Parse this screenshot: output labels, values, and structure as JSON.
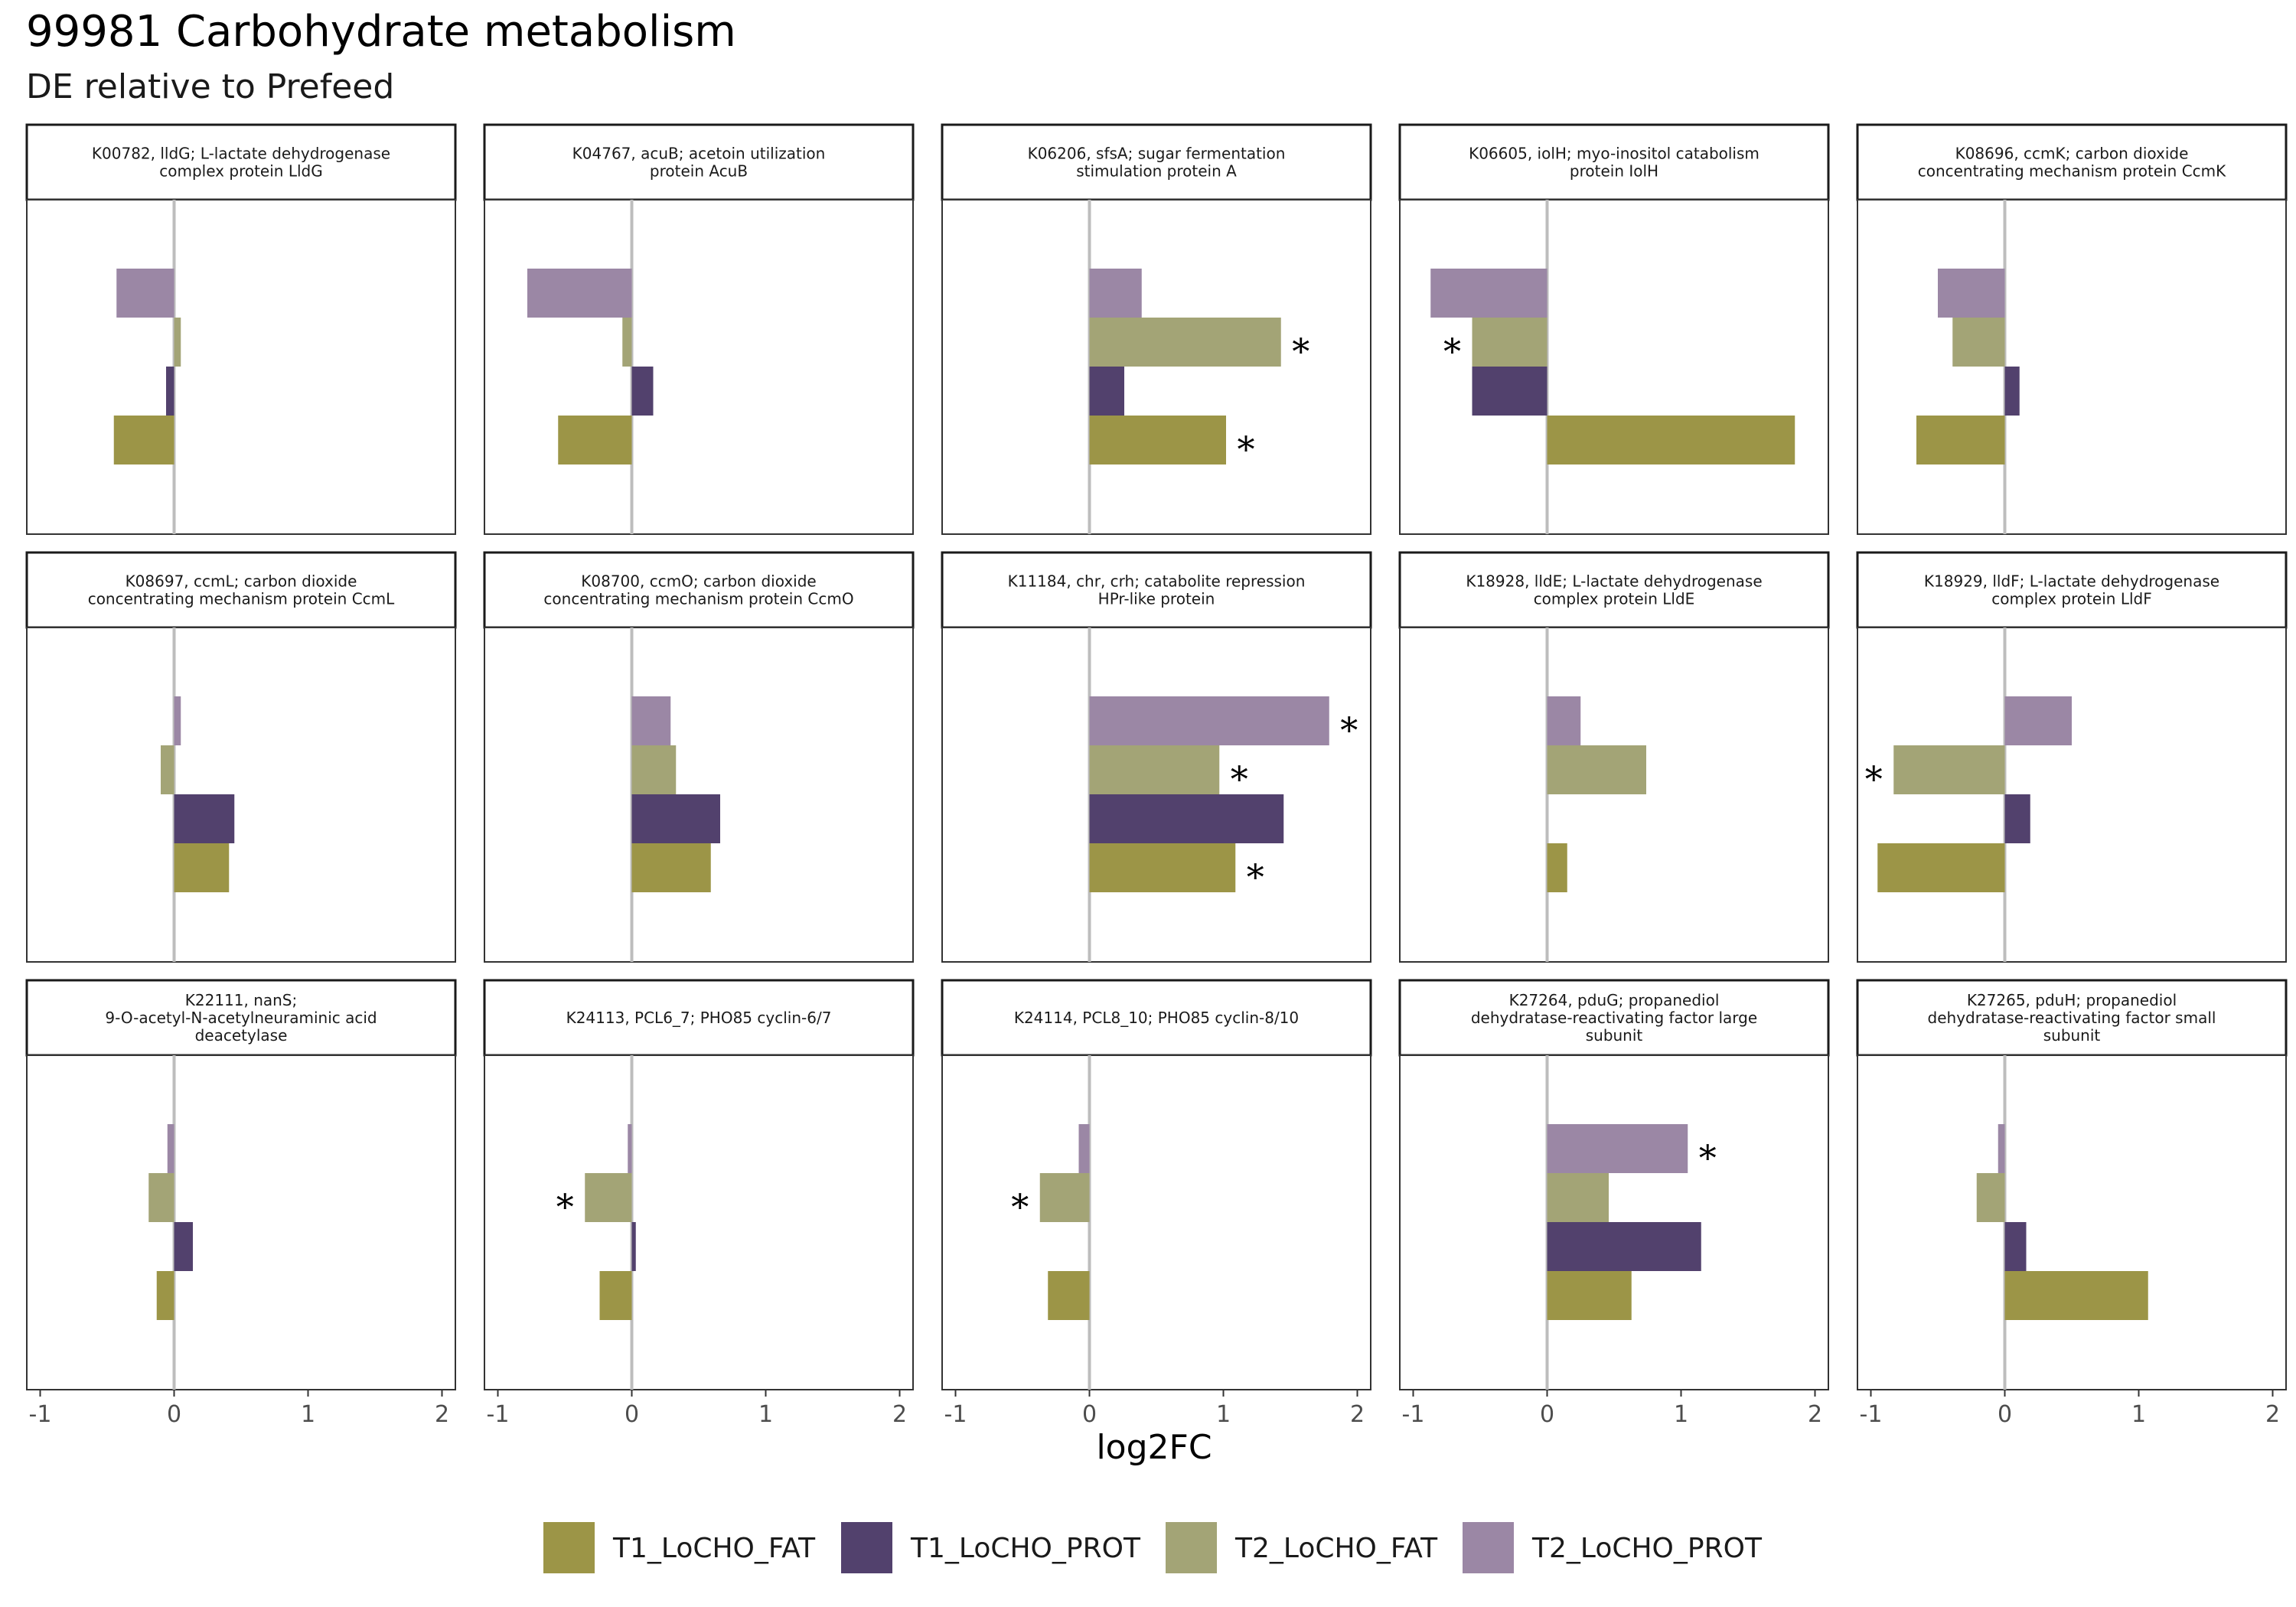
{
  "title": "99981 Carbohydrate metabolism",
  "subtitle": "DE relative to Prefeed",
  "chart_data": {
    "type": "bar",
    "orientation": "horizontal",
    "facet_layout": "3 rows x 5 columns",
    "xlabel": "log2FC",
    "xlim": [
      -1.1,
      2.1
    ],
    "xticks": [
      -1,
      0,
      1,
      2
    ],
    "xtick_labels": [
      "-1",
      "0",
      "1",
      "2"
    ],
    "zero_line": true,
    "grid": false,
    "legend_position": "bottom",
    "series": [
      {
        "name": "T1_LoCHO_FAT",
        "color": "#9c9547"
      },
      {
        "name": "T1_LoCHO_PROT",
        "color": "#52416d"
      },
      {
        "name": "T2_LoCHO_FAT",
        "color": "#a3a476"
      },
      {
        "name": "T2_LoCHO_PROT",
        "color": "#9b87a5"
      }
    ],
    "panels": [
      {
        "title_lines": [
          "K00782, lldG; L-lactate dehydrogenase",
          "complex protein LldG"
        ],
        "values": {
          "T1_LoCHO_FAT": -0.45,
          "T1_LoCHO_PROT": -0.06,
          "T2_LoCHO_FAT": 0.05,
          "T2_LoCHO_PROT": -0.43
        },
        "significant": []
      },
      {
        "title_lines": [
          "K04767, acuB; acetoin utilization",
          "protein AcuB"
        ],
        "values": {
          "T1_LoCHO_FAT": -0.55,
          "T1_LoCHO_PROT": 0.16,
          "T2_LoCHO_FAT": -0.07,
          "T2_LoCHO_PROT": -0.78
        },
        "significant": []
      },
      {
        "title_lines": [
          "K06206, sfsA; sugar fermentation",
          "stimulation protein A"
        ],
        "values": {
          "T1_LoCHO_FAT": 1.02,
          "T1_LoCHO_PROT": 0.26,
          "T2_LoCHO_FAT": 1.43,
          "T2_LoCHO_PROT": 0.39
        },
        "significant": [
          "T1_LoCHO_FAT",
          "T2_LoCHO_FAT"
        ]
      },
      {
        "title_lines": [
          "K06605, iolH; myo-inositol catabolism",
          "protein IolH"
        ],
        "values": {
          "T1_LoCHO_FAT": 1.85,
          "T1_LoCHO_PROT": -0.56,
          "T2_LoCHO_FAT": -0.56,
          "T2_LoCHO_PROT": -0.87
        },
        "significant": [
          "T2_LoCHO_FAT"
        ]
      },
      {
        "title_lines": [
          "K08696, ccmK; carbon dioxide",
          "concentrating mechanism protein CcmK"
        ],
        "values": {
          "T1_LoCHO_FAT": -0.66,
          "T1_LoCHO_PROT": 0.11,
          "T2_LoCHO_FAT": -0.39,
          "T2_LoCHO_PROT": -0.5
        },
        "significant": []
      },
      {
        "title_lines": [
          "K08697, ccmL; carbon dioxide",
          "concentrating mechanism protein CcmL"
        ],
        "values": {
          "T1_LoCHO_FAT": 0.41,
          "T1_LoCHO_PROT": 0.45,
          "T2_LoCHO_FAT": -0.1,
          "T2_LoCHO_PROT": 0.05
        },
        "significant": []
      },
      {
        "title_lines": [
          "K08700, ccmO; carbon dioxide",
          "concentrating mechanism protein CcmO"
        ],
        "values": {
          "T1_LoCHO_FAT": 0.59,
          "T1_LoCHO_PROT": 0.66,
          "T2_LoCHO_FAT": 0.33,
          "T2_LoCHO_PROT": 0.29
        },
        "significant": []
      },
      {
        "title_lines": [
          "K11184, chr, crh; catabolite repression",
          "HPr-like protein"
        ],
        "values": {
          "T1_LoCHO_FAT": 1.09,
          "T1_LoCHO_PROT": 1.45,
          "T2_LoCHO_FAT": 0.97,
          "T2_LoCHO_PROT": 1.79
        },
        "significant": [
          "T1_LoCHO_FAT",
          "T2_LoCHO_FAT",
          "T2_LoCHO_PROT"
        ]
      },
      {
        "title_lines": [
          "K18928, lldE; L-lactate dehydrogenase",
          "complex protein LldE"
        ],
        "values": {
          "T1_LoCHO_FAT": 0.15,
          "T1_LoCHO_PROT": 0.0,
          "T2_LoCHO_FAT": 0.74,
          "T2_LoCHO_PROT": 0.25
        },
        "significant": []
      },
      {
        "title_lines": [
          "K18929, lldF; L-lactate dehydrogenase",
          "complex protein LldF"
        ],
        "values": {
          "T1_LoCHO_FAT": -0.95,
          "T1_LoCHO_PROT": 0.19,
          "T2_LoCHO_FAT": -0.83,
          "T2_LoCHO_PROT": 0.5
        },
        "significant": [
          "T2_LoCHO_FAT"
        ]
      },
      {
        "title_lines": [
          "K22111, nanS;",
          "9-O-acetyl-N-acetylneuraminic acid",
          "deacetylase"
        ],
        "values": {
          "T1_LoCHO_FAT": -0.13,
          "T1_LoCHO_PROT": 0.14,
          "T2_LoCHO_FAT": -0.19,
          "T2_LoCHO_PROT": -0.05
        },
        "significant": []
      },
      {
        "title_lines": [
          "K24113, PCL6_7; PHO85 cyclin-6/7"
        ],
        "values": {
          "T1_LoCHO_FAT": -0.24,
          "T1_LoCHO_PROT": 0.03,
          "T2_LoCHO_FAT": -0.35,
          "T2_LoCHO_PROT": -0.03
        },
        "significant": [
          "T2_LoCHO_FAT"
        ]
      },
      {
        "title_lines": [
          "K24114, PCL8_10; PHO85 cyclin-8/10"
        ],
        "values": {
          "T1_LoCHO_FAT": -0.31,
          "T1_LoCHO_PROT": 0.0,
          "T2_LoCHO_FAT": -0.37,
          "T2_LoCHO_PROT": -0.08
        },
        "significant": [
          "T2_LoCHO_FAT"
        ]
      },
      {
        "title_lines": [
          "K27264, pduG; propanediol",
          "dehydratase-reactivating factor large",
          "subunit"
        ],
        "values": {
          "T1_LoCHO_FAT": 0.63,
          "T1_LoCHO_PROT": 1.15,
          "T2_LoCHO_FAT": 0.46,
          "T2_LoCHO_PROT": 1.05
        },
        "significant": [
          "T2_LoCHO_PROT"
        ]
      },
      {
        "title_lines": [
          "K27265, pduH; propanediol",
          "dehydratase-reactivating factor small",
          "subunit"
        ],
        "values": {
          "T1_LoCHO_FAT": 1.07,
          "T1_LoCHO_PROT": 0.16,
          "T2_LoCHO_FAT": -0.21,
          "T2_LoCHO_PROT": -0.05
        },
        "significant": []
      }
    ],
    "significance_marker": "*"
  }
}
